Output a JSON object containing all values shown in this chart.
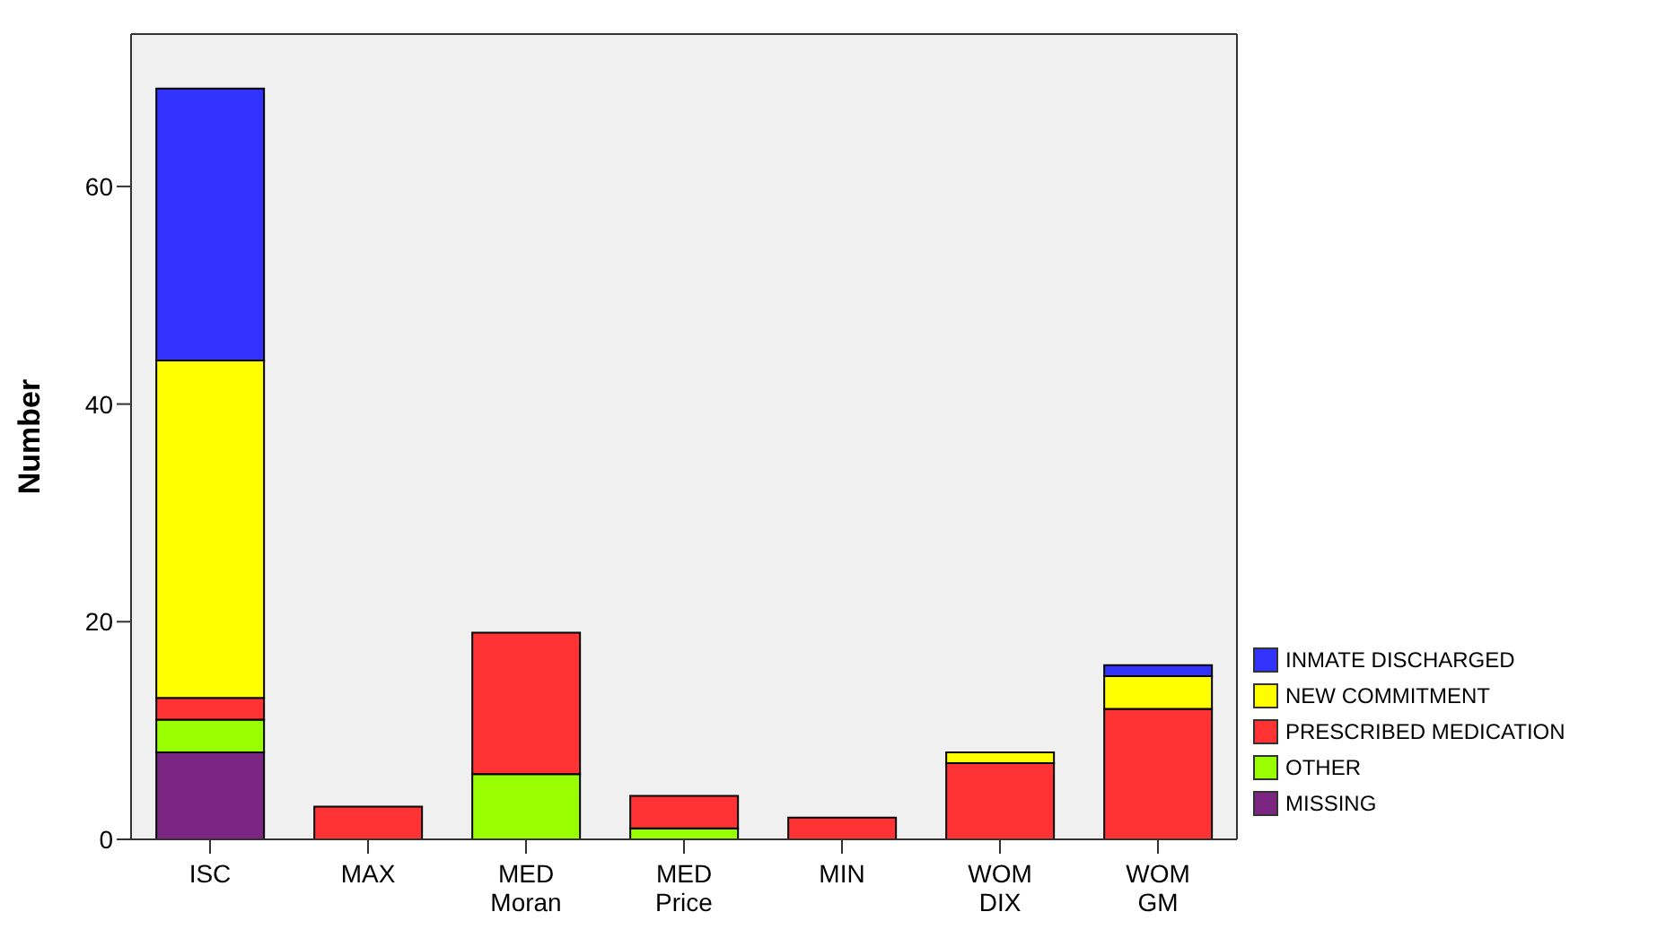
{
  "chart_data": {
    "type": "bar",
    "ylabel": "Number",
    "stacked": true,
    "legend": "right",
    "grid": false,
    "categories": [
      "ISC",
      "MAX",
      "MED Moran",
      "MED Price",
      "MIN",
      "WOM DIX",
      "WOM GM"
    ],
    "ylim": [
      0,
      74
    ],
    "yticks": [
      0,
      20,
      40,
      60
    ],
    "series": [
      {
        "name": "MISSING",
        "color": "#7b2683",
        "values": [
          8,
          0,
          0,
          0,
          0,
          0,
          0
        ]
      },
      {
        "name": "OTHER",
        "color": "#99ff00",
        "values": [
          3,
          0,
          6,
          1,
          0,
          0,
          0
        ]
      },
      {
        "name": "PRESCRIBED MEDICATION",
        "color": "#ff3333",
        "values": [
          2,
          3,
          13,
          3,
          2,
          7,
          12
        ]
      },
      {
        "name": "NEW COMMITMENT",
        "color": "#ffff00",
        "values": [
          31,
          0,
          0,
          0,
          0,
          1,
          3
        ]
      },
      {
        "name": "INMATE DISCHARGED",
        "color": "#3333ff",
        "values": [
          25,
          0,
          0,
          0,
          0,
          0,
          1
        ]
      }
    ]
  }
}
